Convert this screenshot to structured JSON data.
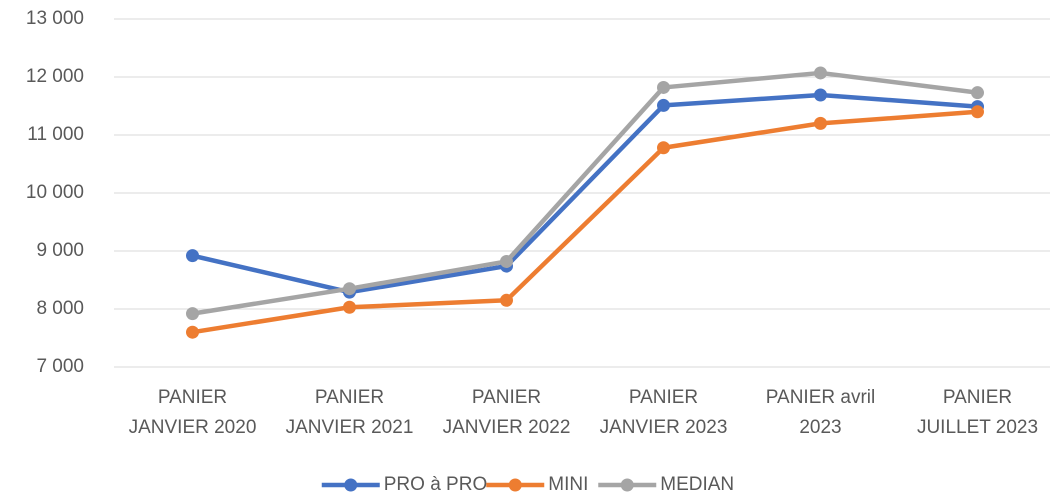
{
  "chart_data": {
    "type": "line",
    "categories": [
      "PANIER\nJANVIER 2020",
      "PANIER\nJANVIER 2021",
      "PANIER\nJANVIER 2022",
      "PANIER\nJANVIER 2023",
      "PANIER avril\n2023",
      "PANIER\nJUILLET 2023"
    ],
    "series": [
      {
        "name": "PRO à PRO",
        "color": "#4472c4",
        "values": [
          8920,
          8290,
          8740,
          11510,
          11690,
          11490
        ]
      },
      {
        "name": "MINI",
        "color": "#ed7d31",
        "values": [
          7600,
          8030,
          8150,
          10780,
          11200,
          11400
        ]
      },
      {
        "name": "MEDIAN",
        "color": "#a5a5a5",
        "values": [
          7920,
          8350,
          8820,
          11820,
          12070,
          11730
        ]
      }
    ],
    "ylim": [
      7000,
      13000
    ],
    "yticks": [
      {
        "value": 7000,
        "label": "7 000"
      },
      {
        "value": 8000,
        "label": "8 000"
      },
      {
        "value": 9000,
        "label": "9 000"
      },
      {
        "value": 10000,
        "label": "10 000"
      },
      {
        "value": 11000,
        "label": "11 000"
      },
      {
        "value": 12000,
        "label": "12 000"
      },
      {
        "value": 13000,
        "label": "13 000"
      }
    ],
    "grid": true,
    "legend": "bottom"
  }
}
